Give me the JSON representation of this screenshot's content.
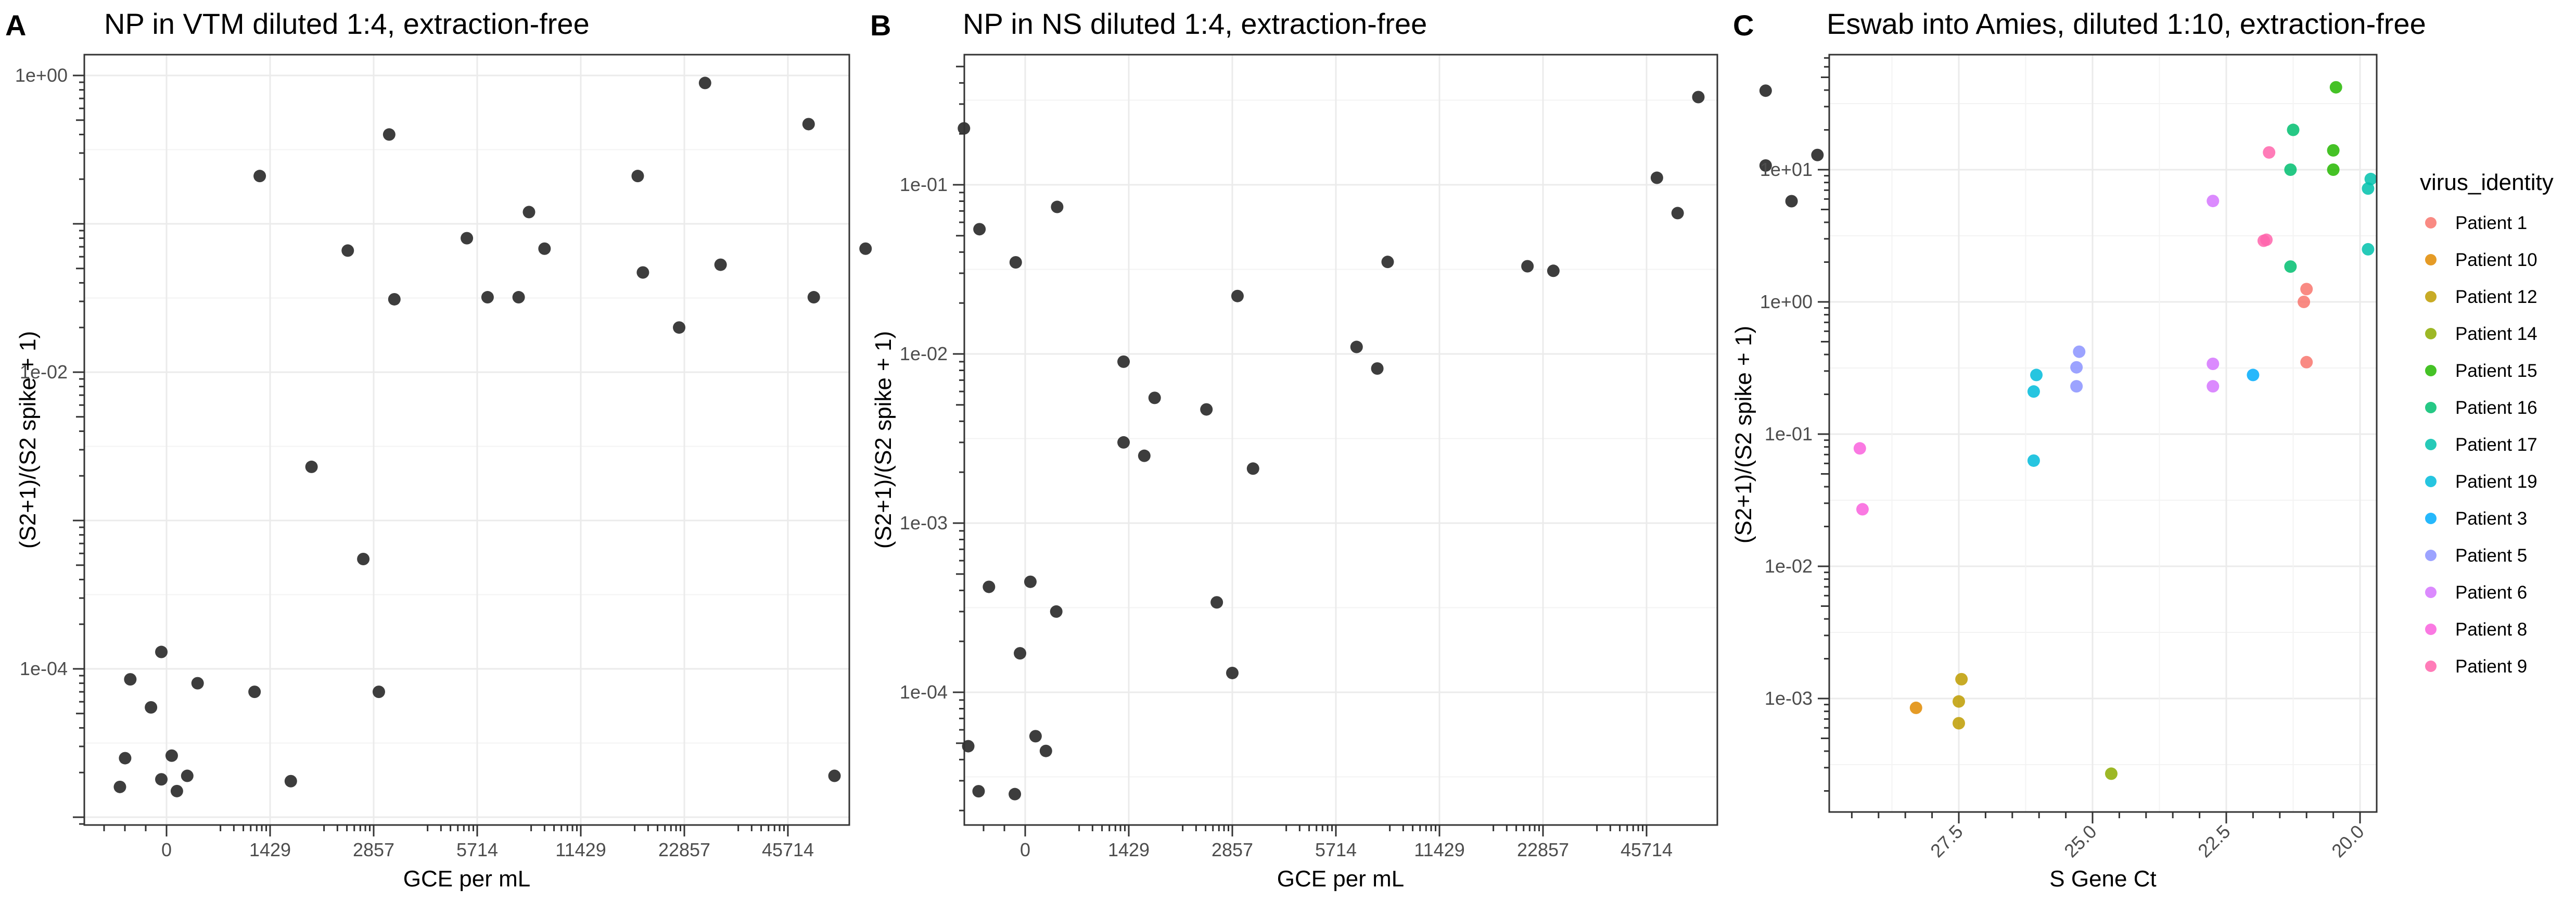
{
  "chart_data": [
    {
      "panel": "A",
      "type": "scatter",
      "title": "NP in VTM diluted 1:4, extraction-free",
      "xlabel": "GCE per mL",
      "ylabel": "(S2+1)/(S2 spike + 1)",
      "y_scale": "log",
      "x_tick_labels": [
        "0",
        "1429",
        "2857",
        "5714",
        "11429",
        "22857",
        "45714"
      ],
      "y_tick_labels": [
        "1e-04",
        "1e-02",
        "1e+00"
      ],
      "point_color": "#333333",
      "points": [
        [
          -0.45,
          1.6e-05
        ],
        [
          -0.35,
          8.5e-05
        ],
        [
          -0.4,
          2.5e-05
        ],
        [
          -0.15,
          5.5e-05
        ],
        [
          -0.05,
          0.00013
        ],
        [
          0.05,
          2.6e-05
        ],
        [
          0.1,
          1.5e-05
        ],
        [
          0.2,
          1.9e-05
        ],
        [
          0.3,
          8e-05
        ],
        [
          -0.05,
          1.8e-05
        ],
        [
          0.85,
          7e-05
        ],
        [
          0.9,
          0.21
        ],
        [
          1.2,
          1.75e-05
        ],
        [
          1.4,
          0.0023
        ],
        [
          1.75,
          0.066
        ],
        [
          1.9,
          0.00055
        ],
        [
          2.05,
          7e-05
        ],
        [
          2.15,
          0.4
        ],
        [
          2.2,
          0.031
        ],
        [
          2.9,
          0.08
        ],
        [
          3.1,
          0.032
        ],
        [
          3.4,
          0.032
        ],
        [
          3.5,
          0.12
        ],
        [
          3.65,
          0.068
        ],
        [
          4.55,
          0.21
        ],
        [
          4.6,
          0.047
        ],
        [
          4.95,
          0.02
        ],
        [
          5.2,
          0.89
        ],
        [
          5.35,
          0.053
        ],
        [
          6.2,
          0.47
        ],
        [
          6.25,
          0.032
        ],
        [
          6.45,
          1.9e-05
        ],
        [
          6.75,
          0.068
        ],
        [
          7.7,
          0.44
        ],
        [
          7.85,
          0.092
        ],
        [
          8.2,
          0.055
        ],
        [
          8.6,
          0.13
        ]
      ]
    },
    {
      "panel": "B",
      "type": "scatter",
      "title": "NP in NS diluted 1:4, extraction-free",
      "xlabel": "GCE per mL",
      "ylabel": "(S2+1)/(S2 spike + 1)",
      "y_scale": "log",
      "x_tick_labels": [
        "0",
        "1429",
        "2857",
        "5714",
        "11429",
        "22857",
        "45714"
      ],
      "y_tick_labels": [
        "1e-04",
        "1e-03",
        "1e-02",
        "1e-01"
      ],
      "point_color": "#333333",
      "points": [
        [
          -0.55,
          4.8e-05
        ],
        [
          -0.45,
          2.6e-05
        ],
        [
          -0.35,
          0.00042
        ],
        [
          -0.05,
          0.00017
        ],
        [
          0.05,
          0.00045
        ],
        [
          -0.1,
          2.5e-05
        ],
        [
          0.1,
          5.5e-05
        ],
        [
          0.2,
          4.5e-05
        ],
        [
          0.3,
          0.0003
        ],
        [
          0.95,
          0.009
        ],
        [
          0.95,
          0.003
        ],
        [
          1.15,
          0.0025
        ],
        [
          1.25,
          0.0055
        ],
        [
          1.75,
          0.0047
        ],
        [
          1.85,
          0.00034
        ],
        [
          2.0,
          0.00013
        ],
        [
          2.05,
          0.022
        ],
        [
          2.2,
          0.0021
        ],
        [
          3.2,
          0.011
        ],
        [
          3.4,
          0.0082
        ],
        [
          3.5,
          0.035
        ],
        [
          4.85,
          0.033
        ],
        [
          5.1,
          0.031
        ],
        [
          6.1,
          0.11
        ],
        [
          6.3,
          0.068
        ],
        [
          6.5,
          0.33
        ],
        [
          7.15,
          0.36
        ],
        [
          7.15,
          0.13
        ],
        [
          7.4,
          0.08
        ],
        [
          7.65,
          0.15
        ]
      ]
    },
    {
      "panel": "C",
      "type": "scatter",
      "title": "Eswab into Amies, diluted 1:10, extraction-free",
      "xlabel": "S Gene Ct",
      "ylabel": "(S2+1)/(S2 spike + 1)",
      "y_scale": "log",
      "x_reversed": true,
      "x_tick_labels": [
        "27.5",
        "25.0",
        "22.5",
        "20.0"
      ],
      "y_tick_labels": [
        "1e-03",
        "1e-02",
        "1e-01",
        "1e+00",
        "1e+01"
      ],
      "legend_title": "virus_identity",
      "legend_position": "right",
      "series": [
        {
          "name": "Patient 1",
          "color": "#F8766D",
          "points": [
            [
              21.0,
              0.35
            ],
            [
              21.05,
              1.0
            ],
            [
              21.0,
              1.25
            ]
          ]
        },
        {
          "name": "Patient 10",
          "color": "#E18A00",
          "points": [
            [
              28.3,
              0.00085
            ]
          ]
        },
        {
          "name": "Patient 12",
          "color": "#BE9C00",
          "points": [
            [
              27.5,
              0.00065
            ],
            [
              27.5,
              0.00095
            ],
            [
              27.45,
              0.0014
            ]
          ]
        },
        {
          "name": "Patient 14",
          "color": "#8CAB00",
          "points": [
            [
              24.65,
              0.00027
            ]
          ]
        },
        {
          "name": "Patient 15",
          "color": "#24B700",
          "points": [
            [
              20.5,
              10.0
            ],
            [
              20.5,
              14.0
            ],
            [
              20.45,
              42.0
            ]
          ]
        },
        {
          "name": "Patient 16",
          "color": "#00BE70",
          "points": [
            [
              21.3,
              1.85
            ],
            [
              21.3,
              10.0
            ],
            [
              21.25,
              20.0
            ]
          ]
        },
        {
          "name": "Patient 17",
          "color": "#00C1AB",
          "points": [
            [
              19.85,
              2.5
            ],
            [
              19.85,
              7.2
            ],
            [
              19.8,
              8.5
            ]
          ]
        },
        {
          "name": "Patient 19",
          "color": "#00BBDA",
          "points": [
            [
              26.1,
              0.063
            ],
            [
              26.1,
              0.21
            ],
            [
              26.05,
              0.28
            ]
          ]
        },
        {
          "name": "Patient 3",
          "color": "#00ACFC",
          "points": [
            [
              22.0,
              0.28
            ]
          ]
        },
        {
          "name": "Patient 5",
          "color": "#8B93FF",
          "points": [
            [
              25.3,
              0.23
            ],
            [
              25.3,
              0.32
            ],
            [
              25.25,
              0.42
            ]
          ]
        },
        {
          "name": "Patient 6",
          "color": "#D575FE",
          "points": [
            [
              22.75,
              0.23
            ],
            [
              22.75,
              0.34
            ],
            [
              22.75,
              5.8
            ]
          ]
        },
        {
          "name": "Patient 8",
          "color": "#F962DD",
          "points": [
            [
              29.3,
              0.027
            ],
            [
              29.35,
              0.078
            ]
          ]
        },
        {
          "name": "Patient 9",
          "color": "#FF65AC",
          "points": [
            [
              21.8,
              2.9
            ],
            [
              21.75,
              2.95
            ],
            [
              21.7,
              13.5
            ]
          ]
        }
      ]
    }
  ]
}
